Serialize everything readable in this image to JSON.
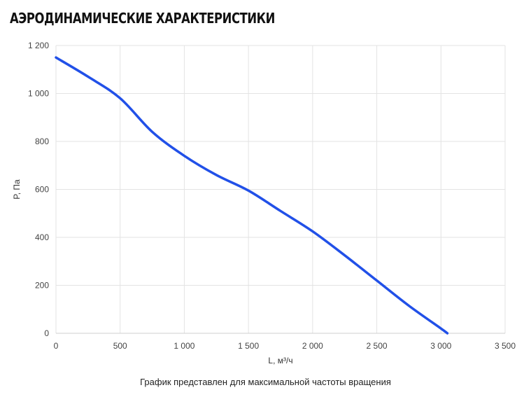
{
  "page": {
    "title": "АЭРОДИНАМИЧЕСКИЕ ХАРАКТЕРИСТИКИ",
    "caption": "График представлен для максимальной частоты вращения"
  },
  "colors": {
    "line": "#2150e8",
    "grid": "#e3e3e3",
    "axis": "#cfcfcf",
    "tick_text": "#444444"
  },
  "chart_data": {
    "type": "line",
    "title": "",
    "xlabel": "L, м³/ч",
    "ylabel": "P, Па",
    "xlim": [
      0,
      3500
    ],
    "ylim": [
      0,
      1200
    ],
    "x_ticks": [
      0,
      500,
      1000,
      1500,
      2000,
      2500,
      3000,
      3500
    ],
    "x_tick_labels": [
      "0",
      "500",
      "1 000",
      "1 500",
      "2 000",
      "2 500",
      "3 000",
      "3 500"
    ],
    "y_ticks": [
      0,
      200,
      400,
      600,
      800,
      1000,
      1200
    ],
    "y_tick_labels": [
      "0",
      "200",
      "400",
      "600",
      "800",
      "1 000",
      "1 200"
    ],
    "grid": true,
    "series": [
      {
        "x": [
          0,
          250,
          500,
          750,
          1000,
          1250,
          1500,
          1750,
          2000,
          2250,
          2500,
          2750,
          3000,
          3050
        ],
        "values": [
          1150,
          1070,
          980,
          840,
          740,
          660,
          595,
          510,
          425,
          325,
          220,
          115,
          20,
          0
        ]
      }
    ]
  }
}
